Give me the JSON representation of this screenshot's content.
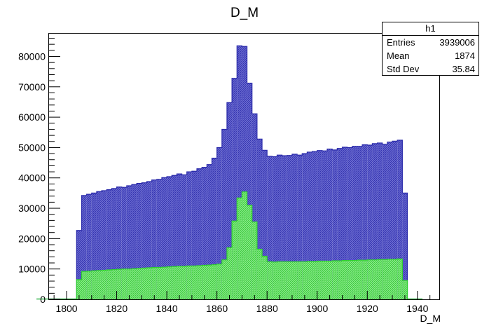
{
  "chart_data": {
    "type": "bar",
    "title": "D_M",
    "xlabel": "D_M",
    "ylabel": "",
    "xlim": [
      1793,
      1949
    ],
    "ylim": [
      0,
      87500
    ],
    "bin_width": 2,
    "x_ticks": [
      1800,
      1820,
      1840,
      1860,
      1880,
      1900,
      1920,
      1940
    ],
    "y_ticks": [
      0,
      10000,
      20000,
      30000,
      40000,
      50000,
      60000,
      70000,
      80000
    ],
    "x_tick_labels": [
      "1800",
      "1820",
      "1840",
      "1860",
      "1880",
      "1900",
      "1920",
      "1940"
    ],
    "y_tick_labels": [
      "0",
      "10000",
      "20000",
      "30000",
      "40000",
      "50000",
      "60000",
      "70000",
      "80000"
    ],
    "grid": false,
    "series": [
      {
        "name": "h1",
        "color": "#2a2aaa",
        "fill": "#5a5ac8",
        "x_low_edges": [
          1804,
          1806,
          1808,
          1810,
          1812,
          1814,
          1816,
          1818,
          1820,
          1822,
          1824,
          1826,
          1828,
          1830,
          1832,
          1834,
          1836,
          1838,
          1840,
          1842,
          1844,
          1846,
          1848,
          1850,
          1852,
          1854,
          1856,
          1858,
          1860,
          1862,
          1864,
          1866,
          1868,
          1870,
          1872,
          1874,
          1876,
          1878,
          1880,
          1882,
          1884,
          1886,
          1888,
          1890,
          1892,
          1894,
          1896,
          1898,
          1900,
          1902,
          1904,
          1906,
          1908,
          1910,
          1912,
          1914,
          1916,
          1918,
          1920,
          1922,
          1924,
          1926,
          1928,
          1930,
          1932,
          1934
        ],
        "values": [
          22700,
          34200,
          34600,
          35000,
          35500,
          35800,
          36100,
          36500,
          37000,
          36900,
          37400,
          37800,
          38200,
          38400,
          38800,
          39300,
          39500,
          40100,
          40400,
          40800,
          41300,
          41000,
          42000,
          42200,
          43000,
          43500,
          44400,
          46500,
          50000,
          56000,
          64800,
          72800,
          83500,
          83300,
          71200,
          61100,
          52800,
          49100,
          47100,
          47000,
          47500,
          47300,
          47400,
          47800,
          47500,
          48000,
          48500,
          48700,
          49000,
          48900,
          49500,
          49200,
          49700,
          50100,
          50000,
          50400,
          50400,
          50900,
          50800,
          51300,
          51500,
          51100,
          51800,
          52100,
          52400,
          35000
        ]
      },
      {
        "name": "",
        "color": "#30d030",
        "fill": "#7be87b",
        "x_low_edges": [
          1804,
          1806,
          1808,
          1810,
          1812,
          1814,
          1816,
          1818,
          1820,
          1822,
          1824,
          1826,
          1828,
          1830,
          1832,
          1834,
          1836,
          1838,
          1840,
          1842,
          1844,
          1846,
          1848,
          1850,
          1852,
          1854,
          1856,
          1858,
          1860,
          1862,
          1864,
          1866,
          1868,
          1870,
          1872,
          1874,
          1876,
          1878,
          1880,
          1882,
          1884,
          1886,
          1888,
          1890,
          1892,
          1894,
          1896,
          1898,
          1900,
          1902,
          1904,
          1906,
          1908,
          1910,
          1912,
          1914,
          1916,
          1918,
          1920,
          1922,
          1924,
          1926,
          1928,
          1930,
          1932,
          1934
        ],
        "values": [
          6500,
          9200,
          9300,
          9400,
          9500,
          9600,
          9700,
          9800,
          9900,
          10000,
          10000,
          10100,
          10200,
          10300,
          10400,
          10500,
          10500,
          10600,
          10700,
          10800,
          10900,
          10900,
          11000,
          11000,
          11100,
          11200,
          11300,
          11400,
          11600,
          13000,
          17000,
          25800,
          33400,
          35400,
          31000,
          25500,
          16500,
          14200,
          12400,
          12300,
          12400,
          12400,
          12400,
          12400,
          12400,
          12400,
          12500,
          12500,
          12600,
          12600,
          12600,
          12700,
          12700,
          12800,
          12800,
          12800,
          12900,
          12900,
          13000,
          13000,
          13100,
          13100,
          13200,
          13200,
          13300,
          6200
        ]
      }
    ]
  },
  "stats": {
    "title": "h1",
    "rows": [
      {
        "label": "Entries",
        "value": "3939006"
      },
      {
        "label": "Mean",
        "value": "1874"
      },
      {
        "label": "Std Dev",
        "value": "35.84"
      }
    ]
  }
}
